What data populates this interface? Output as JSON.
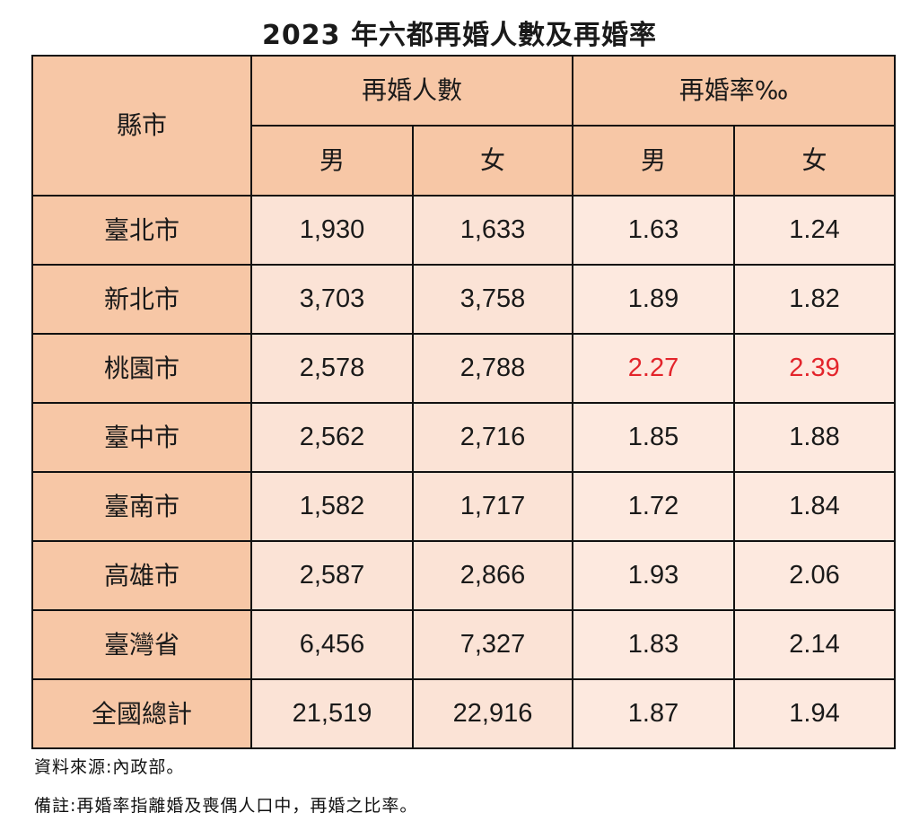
{
  "title": "2023 年六都再婚人數及再婚率",
  "table": {
    "city_header": "縣市",
    "group_headers": [
      "再婚人數",
      "再婚率‰"
    ],
    "sub_headers": [
      "男",
      "女",
      "男",
      "女"
    ],
    "rows": [
      {
        "city": "臺北市",
        "count_male": "1,930",
        "count_female": "1,633",
        "rate_male": "1.63",
        "rate_female": "1.24"
      },
      {
        "city": "新北市",
        "count_male": "3,703",
        "count_female": "3,758",
        "rate_male": "1.89",
        "rate_female": "1.82"
      },
      {
        "city": "桃園市",
        "count_male": "2,578",
        "count_female": "2,788",
        "rate_male": "2.27",
        "rate_female": "2.39"
      },
      {
        "city": "臺中市",
        "count_male": "2,562",
        "count_female": "2,716",
        "rate_male": "1.85",
        "rate_female": "1.88"
      },
      {
        "city": "臺南市",
        "count_male": "1,582",
        "count_female": "1,717",
        "rate_male": "1.72",
        "rate_female": "1.84"
      },
      {
        "city": "高雄市",
        "count_male": "2,587",
        "count_female": "2,866",
        "rate_male": "1.93",
        "rate_female": "2.06"
      },
      {
        "city": "臺灣省",
        "count_male": "6,456",
        "count_female": "7,327",
        "rate_male": "1.83",
        "rate_female": "2.14"
      },
      {
        "city": "全國總計",
        "count_male": "21,519",
        "count_female": "22,916",
        "rate_male": "1.87",
        "rate_female": "1.94"
      }
    ],
    "colors": {
      "header_bg": "#f7c7a6",
      "cell_bg": "#fbe3d6",
      "highlight_text": "#e3242b"
    }
  },
  "notes": {
    "source": "資料來源:內政部。",
    "remark": "備註:再婚率指離婚及喪偶人口中，再婚之比率。"
  }
}
